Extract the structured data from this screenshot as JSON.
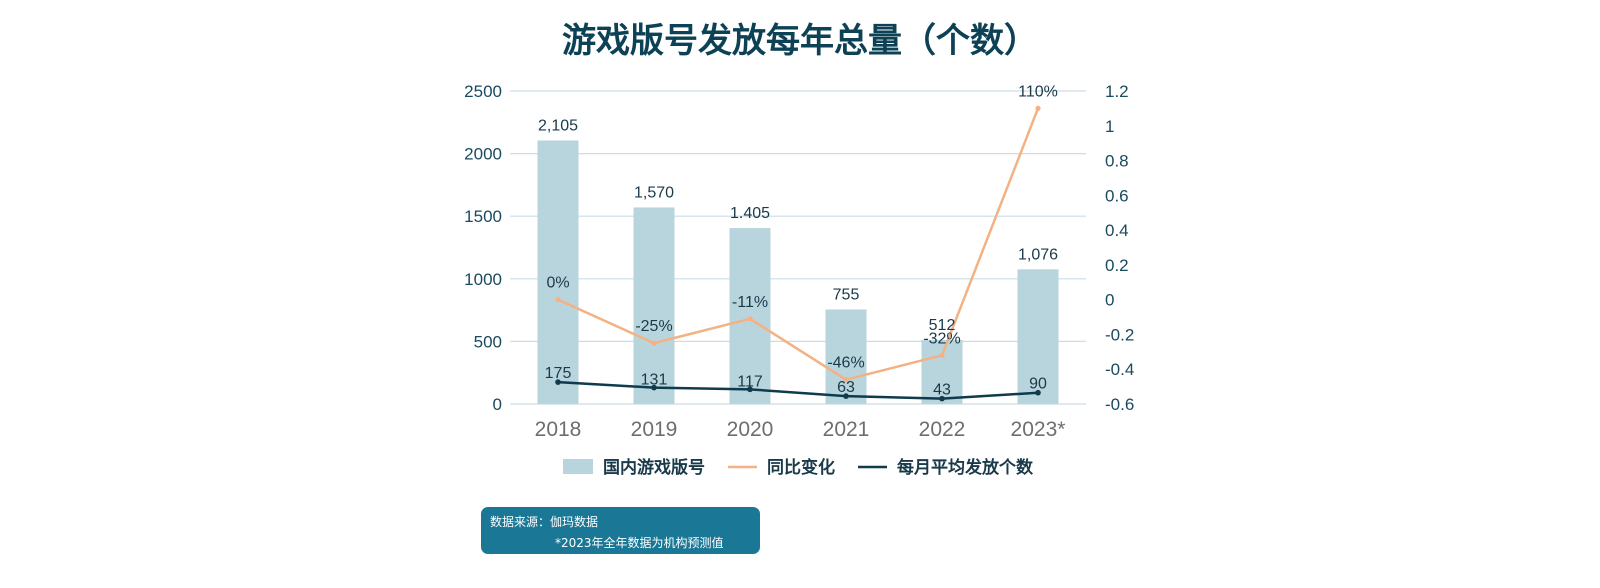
{
  "chart_data": {
    "type": "bar+line",
    "title": "游戏版号发放每年总量（个数）",
    "categories": [
      "2018",
      "2019",
      "2020",
      "2021",
      "2022",
      "2023*"
    ],
    "series": [
      {
        "name": "国内游戏版号",
        "type": "bar",
        "axis": "left",
        "values": [
          2105,
          1570,
          1405,
          755,
          512,
          1076
        ],
        "value_labels": [
          "2,105",
          "1,570",
          "1.405",
          "755",
          "512",
          "1,076"
        ],
        "color": "#b8d5de"
      },
      {
        "name": "同比变化",
        "type": "line",
        "axis": "right",
        "values": [
          0,
          -0.25,
          -0.11,
          -0.46,
          -0.32,
          1.1
        ],
        "value_labels": [
          "0%",
          "-25%",
          "-11%",
          "-46%",
          "-32%",
          "110%"
        ],
        "color": "#f4b183"
      },
      {
        "name": "每月平均发放个数",
        "type": "line",
        "axis": "left",
        "values": [
          175,
          131,
          117,
          63,
          43,
          90
        ],
        "value_labels": [
          "175",
          "131",
          "117",
          "63",
          "43",
          "90"
        ],
        "color": "#0f3b4c"
      }
    ],
    "y_left": {
      "range": [
        0,
        2500
      ],
      "ticks": [
        "0",
        "500",
        "1000",
        "1500",
        "2000",
        "2500"
      ],
      "values": [
        0,
        500,
        1000,
        1500,
        2000,
        2500
      ]
    },
    "y_right": {
      "range": [
        -0.6,
        1.2
      ],
      "ticks": [
        "-0.6",
        "-0.4",
        "-0.2",
        "0",
        "0.2",
        "0.4",
        "0.6",
        "0.8",
        "1",
        "1.2"
      ],
      "values": [
        -0.6,
        -0.4,
        -0.2,
        0,
        0.2,
        0.4,
        0.6,
        0.8,
        1.0,
        1.2
      ]
    },
    "grid": true,
    "legend_position": "bottom"
  },
  "source": {
    "line1": "数据来源：伽玛数据",
    "line2": "*2023年全年数据为机构预测值"
  }
}
